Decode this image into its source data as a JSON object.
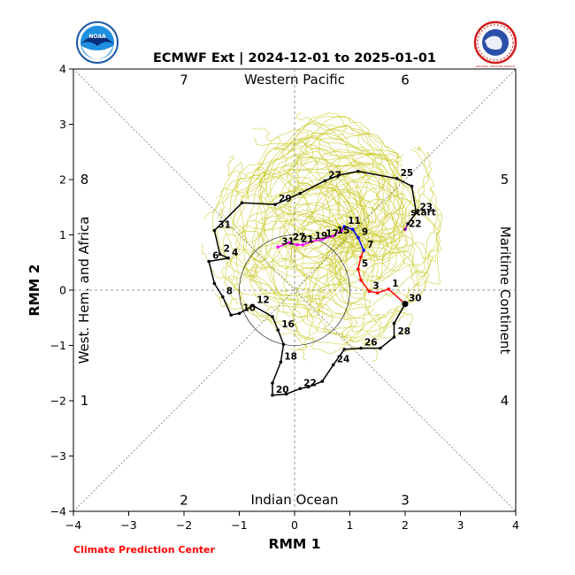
{
  "chart_data": {
    "type": "line",
    "title": "ECMWF Ext | 2024-12-01 to 2025-01-01",
    "xlabel": "RMM 1",
    "ylabel": "RMM 2",
    "xlim": [
      -4,
      4
    ],
    "ylim": [
      -4,
      4
    ],
    "xticks": [
      "−4",
      "−3",
      "−2",
      "−1",
      "0",
      "1",
      "2",
      "3",
      "4"
    ],
    "yticks": [
      "−4",
      "−3",
      "−2",
      "−1",
      "0",
      "1",
      "2",
      "3",
      "4"
    ],
    "grid": false,
    "unit_circle_radius": 1,
    "regions": {
      "top": "Western Pacific",
      "bottom": "Indian Ocean",
      "left": "West. Hem. and Africa",
      "right": "Maritime Continent"
    },
    "phases": [
      {
        "label": "1",
        "x": -3.8,
        "y": -2.0
      },
      {
        "label": "2",
        "x": -2.0,
        "y": -3.8
      },
      {
        "label": "3",
        "x": 2.0,
        "y": -3.8
      },
      {
        "label": "4",
        "x": 3.8,
        "y": -2.0
      },
      {
        "label": "5",
        "x": 3.8,
        "y": 2.0
      },
      {
        "label": "6",
        "x": 2.0,
        "y": 3.8
      },
      {
        "label": "7",
        "x": -2.0,
        "y": 3.8
      },
      {
        "label": "8",
        "x": -3.8,
        "y": 2.0
      }
    ],
    "start_label": "start",
    "series": [
      {
        "color": "#8b008b",
        "x": [
          2.0,
          2.05
        ],
        "y": [
          1.1,
          1.2
        ],
        "labels": [
          "22",
          ""
        ]
      },
      {
        "color": "#000000",
        "x": [
          2.05,
          2.2,
          2.12,
          1.85,
          1.15,
          0.8,
          0.55,
          0.1,
          -0.35,
          -0.95,
          -1.45,
          -1.35,
          -1.2
        ],
        "y": [
          1.2,
          1.4,
          1.88,
          2.02,
          2.15,
          2.08,
          1.98,
          1.75,
          1.55,
          1.58,
          1.08,
          0.65,
          0.58
        ],
        "labels": [
          "",
          "23",
          "",
          "25",
          "",
          "",
          "27",
          "",
          "29",
          "",
          "31",
          "2",
          "4"
        ]
      },
      {
        "color": "#000000",
        "x": [
          -1.2,
          -1.55,
          -1.45,
          -1.3,
          -1.15,
          -1.0,
          -0.75,
          -0.4,
          -0.3,
          -0.2,
          -0.25,
          -0.4,
          -0.4,
          -0.15,
          0.1,
          0.25,
          0.5,
          0.7,
          0.9,
          1.2,
          1.55,
          1.8,
          1.8,
          2.0
        ],
        "y": [
          0.58,
          0.52,
          0.12,
          -0.12,
          -0.45,
          -0.42,
          -0.28,
          -0.48,
          -0.72,
          -0.98,
          -1.3,
          -1.68,
          -1.9,
          -1.88,
          -1.78,
          -1.75,
          -1.65,
          -1.35,
          -1.07,
          -1.05,
          -1.05,
          -0.85,
          -0.6,
          -0.25
        ],
        "labels": [
          "",
          "6",
          "",
          "8",
          "",
          "10",
          "12",
          "",
          "16",
          "",
          "18",
          "",
          "20",
          "",
          "22",
          "",
          "",
          "24",
          "",
          "26",
          "",
          "28",
          "",
          "30"
        ]
      },
      {
        "color": "#ff0000",
        "x": [
          2.0,
          1.7,
          1.5,
          1.35,
          1.2,
          1.15,
          1.2,
          1.25
        ],
        "y": [
          -0.25,
          0.02,
          -0.05,
          -0.02,
          0.18,
          0.38,
          0.6,
          0.72
        ],
        "labels": [
          "",
          "1",
          "",
          "3",
          "",
          "5",
          "",
          "7"
        ]
      },
      {
        "color": "#0000ff",
        "x": [
          1.25,
          1.15,
          1.05,
          0.9,
          0.85
        ],
        "y": [
          0.72,
          0.95,
          1.1,
          1.15,
          1.08
        ],
        "labels": [
          "",
          "9",
          "",
          "11",
          ""
        ]
      },
      {
        "color": "#ff00ff",
        "x": [
          0.85,
          0.7,
          0.5,
          0.3,
          0.15,
          0.05,
          -0.1,
          -0.3
        ],
        "y": [
          1.08,
          0.98,
          0.92,
          0.88,
          0.82,
          0.82,
          0.86,
          0.78
        ],
        "labels": [
          "",
          "15",
          "17",
          "19",
          "",
          "21",
          "27",
          "31"
        ]
      }
    ],
    "ensemble_color": "#c8c81e",
    "logos": {
      "left": "NOAA",
      "right": "NATIONAL WEATHER SERVICE"
    },
    "credit": "Climate Prediction Center"
  }
}
